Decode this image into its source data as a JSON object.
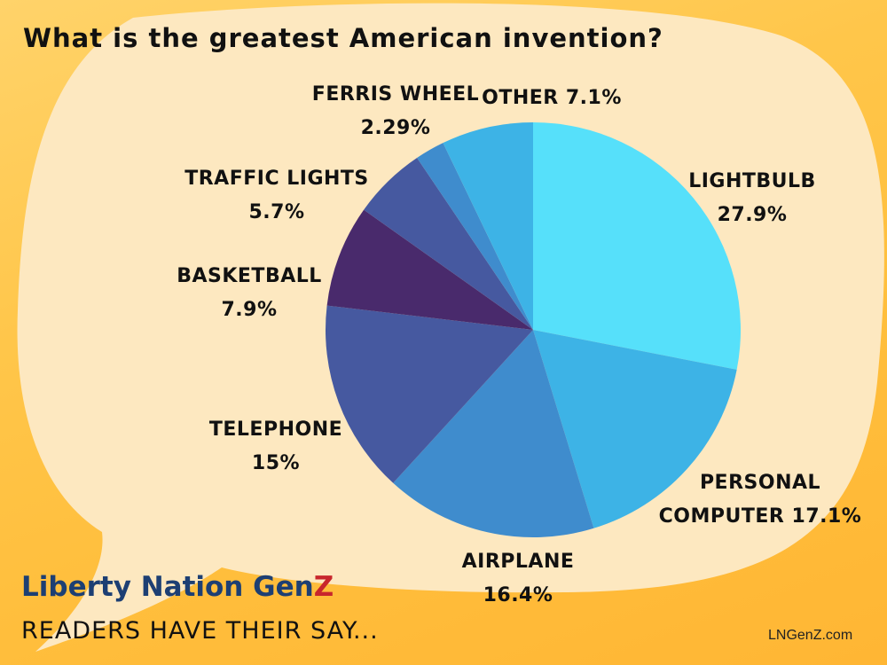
{
  "title": "What is the greatest American invention?",
  "branding": {
    "brand_main": "Liberty Nation Gen",
    "brand_accent": "Z",
    "tagline": "READERS HAVE THEIR SAY...",
    "website": "LNGenZ.com"
  },
  "colors": {
    "background": "#ffc64a",
    "bubble": "#fde8c0",
    "brand_blue": "#1d3f73",
    "brand_red": "#c8262c"
  },
  "chart_data": {
    "type": "pie",
    "title": "What is the greatest American invention?",
    "start": "12 o'clock",
    "direction": "clockwise",
    "slices": [
      {
        "label": "LIGHTBULB",
        "value_text": "27.9%",
        "value": 27.9,
        "color": "#56e0fa"
      },
      {
        "label": "PERSONAL COMPUTER",
        "value_text": "17.1%",
        "value": 17.1,
        "color": "#3db3e6"
      },
      {
        "label": "AIRPLANE",
        "value_text": "16.4%",
        "value": 16.4,
        "color": "#3f8ccd"
      },
      {
        "label": "TELEPHONE",
        "value_text": "15%",
        "value": 15.0,
        "color": "#4659a0"
      },
      {
        "label": "BASKETBALL",
        "value_text": "7.9%",
        "value": 7.9,
        "color": "#492a6c"
      },
      {
        "label": "TRAFFIC LIGHTS",
        "value_text": "5.7%",
        "value": 5.7,
        "color": "#4659a0"
      },
      {
        "label": "FERRIS WHEEL",
        "value_text": "2.29%",
        "value": 2.29,
        "color": "#3f8ccd"
      },
      {
        "label": "OTHER",
        "value_text": "7.1%",
        "value": 7.1,
        "color": "#3db3e6"
      }
    ]
  }
}
